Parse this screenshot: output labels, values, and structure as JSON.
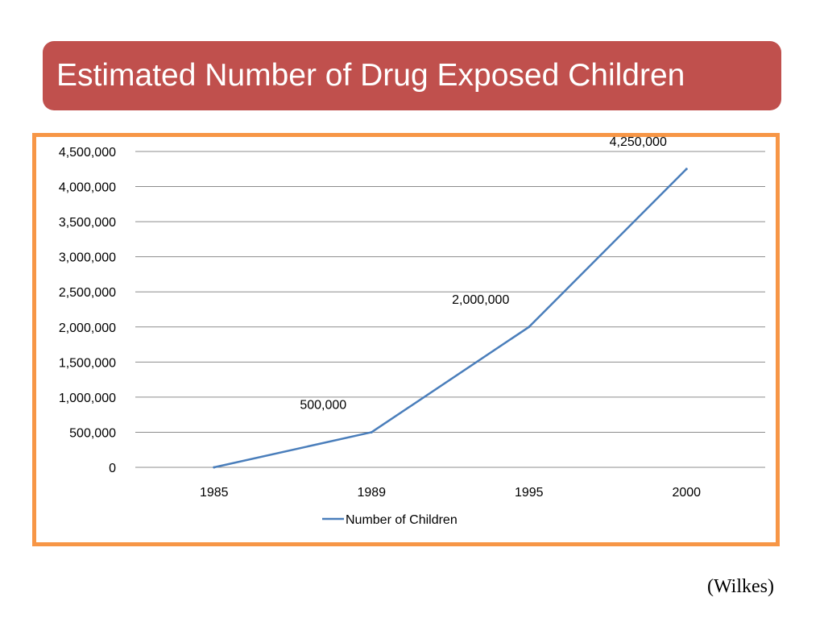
{
  "slide": {
    "title": "Estimated Number of Drug Exposed Children",
    "source": "(Wilkes)"
  },
  "colors": {
    "title_bg": "#c0504d",
    "frame_border": "#f79646",
    "series_line": "#4a7ebb",
    "gridline": "#8c8c8c"
  },
  "chart_data": {
    "type": "line",
    "title": "",
    "xlabel": "",
    "ylabel": "",
    "categories": [
      "1985",
      "1989",
      "1995",
      "2000"
    ],
    "series": [
      {
        "name": "Number of Children",
        "values": [
          0,
          500000,
          2000000,
          4250000
        ]
      }
    ],
    "data_labels": [
      "",
      "500,000",
      "2,000,000",
      "4,250,000"
    ],
    "ylim": [
      0,
      4500000
    ],
    "y_ticks": [
      0,
      500000,
      1000000,
      1500000,
      2000000,
      2500000,
      3000000,
      3500000,
      4000000,
      4500000
    ],
    "y_tick_labels": [
      "0",
      "500,000",
      "1,000,000",
      "1,500,000",
      "2,000,000",
      "2,500,000",
      "3,000,000",
      "3,500,000",
      "4,000,000",
      "4,500,000"
    ],
    "grid": true,
    "legend": "bottom"
  }
}
